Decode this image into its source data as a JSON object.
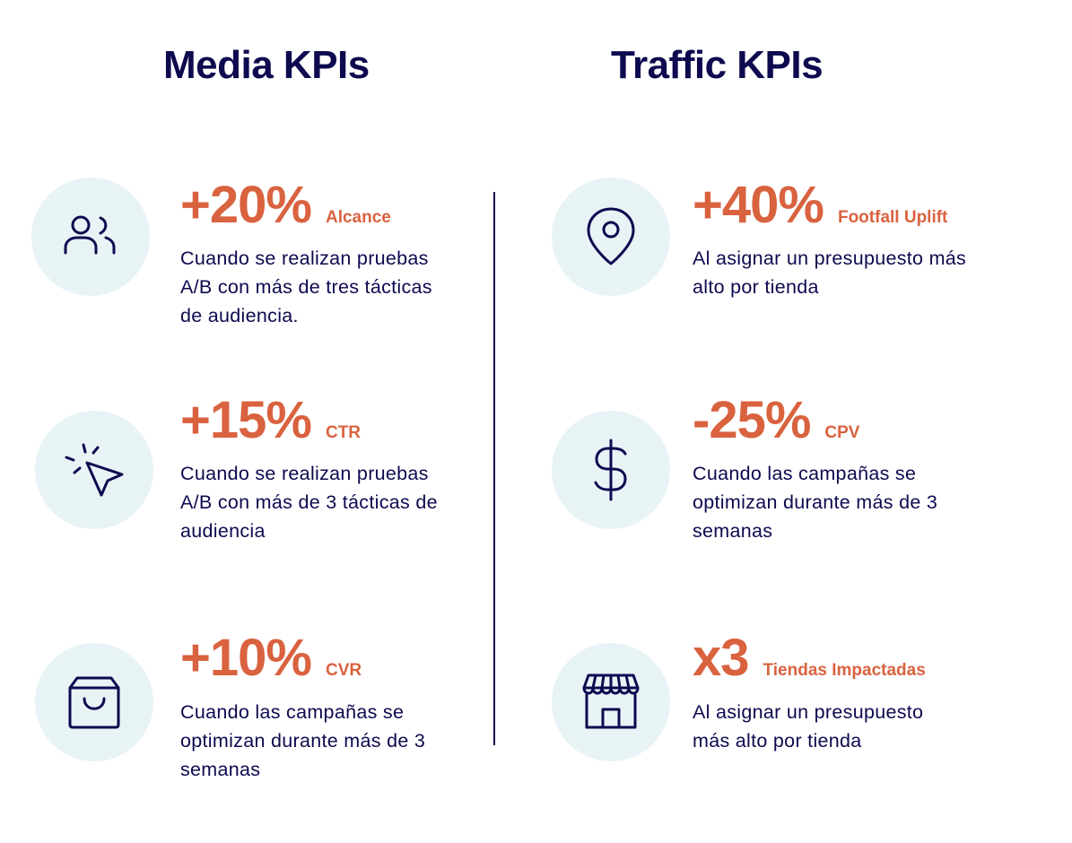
{
  "columns": [
    {
      "title": "Media KPIs",
      "kpis": [
        {
          "icon": "users-icon",
          "value": "+20%",
          "label": "Alcance",
          "desc": "Cuando se realizan pruebas A/B con más de tres tácticas de audiencia."
        },
        {
          "icon": "cursor-click-icon",
          "value": "+15%",
          "label": "CTR",
          "desc": "Cuando se realizan pruebas A/B con más de 3 tácticas de audiencia"
        },
        {
          "icon": "shopping-bag-icon",
          "value": "+10%",
          "label": "CVR",
          "desc": "Cuando las campañas se optimizan durante más de 3 semanas"
        }
      ]
    },
    {
      "title": "Traffic KPIs",
      "kpis": [
        {
          "icon": "map-pin-icon",
          "value": "+40%",
          "label": "Footfall Uplift",
          "desc": "Al asignar un presupuesto más alto por tienda"
        },
        {
          "icon": "dollar-sign-icon",
          "value": "-25%",
          "label": "CPV",
          "desc": "Cuando las campañas se optimizan durante más de 3 semanas"
        },
        {
          "icon": "storefront-icon",
          "value": "x3",
          "label": "Tiendas Impactadas",
          "desc": "Al asignar un presupuesto más alto por tienda"
        }
      ]
    }
  ],
  "colors": {
    "navy": "#0d0a4f",
    "accent": "#d9623f",
    "icon_bg": "#e8f3f6"
  }
}
